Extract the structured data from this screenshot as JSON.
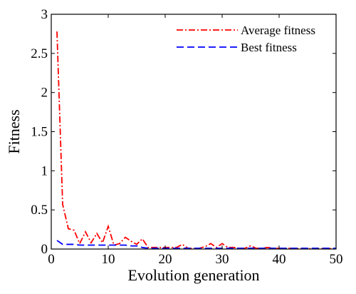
{
  "chart_data": {
    "type": "line",
    "xlabel": "Evolution generation",
    "ylabel": "Fitness",
    "xlim": [
      0,
      50
    ],
    "ylim": [
      0,
      3
    ],
    "xticks": [
      0,
      10,
      20,
      30,
      40,
      50
    ],
    "yticks": [
      0,
      0.5,
      1,
      1.5,
      2,
      2.5,
      3
    ],
    "ytick_labels": [
      "0",
      "0.5",
      "1",
      "1.5",
      "2",
      "2.5",
      "3"
    ],
    "grid": false,
    "legend_position": "top-right",
    "series": [
      {
        "name": "Average fitness",
        "color": "#ff0000",
        "style": "dash-dot",
        "x": [
          1,
          2,
          3,
          4,
          5,
          6,
          7,
          8,
          9,
          10,
          11,
          12,
          13,
          14,
          15,
          16,
          17,
          18,
          19,
          20,
          21,
          22,
          23,
          24,
          25,
          26,
          27,
          28,
          29,
          30,
          31,
          32,
          33,
          34,
          35,
          36,
          37,
          38,
          39,
          40,
          41,
          42,
          43,
          44,
          45,
          46,
          47,
          48,
          49,
          50
        ],
        "y": [
          2.78,
          0.57,
          0.26,
          0.24,
          0.07,
          0.22,
          0.08,
          0.2,
          0.08,
          0.29,
          0.05,
          0.07,
          0.15,
          0.1,
          0.06,
          0.13,
          0.02,
          0.02,
          0.02,
          0.02,
          0.02,
          0.02,
          0.06,
          0.01,
          0.01,
          0.01,
          0.03,
          0.07,
          0.02,
          0.07,
          0.02,
          0.02,
          0.01,
          0.01,
          0.04,
          0.01,
          0.01,
          0.02,
          0.01,
          0.01,
          0.01,
          0.01,
          0.005,
          0.005,
          0.005,
          0.005,
          0.005,
          0.005,
          0.005,
          0.005
        ]
      },
      {
        "name": "Best fitness",
        "color": "#0000ff",
        "style": "dashed",
        "x": [
          1,
          2,
          3,
          4,
          5,
          6,
          7,
          8,
          9,
          10,
          11,
          12,
          13,
          14,
          15,
          16,
          17,
          18,
          19,
          20,
          21,
          22,
          23,
          24,
          25,
          26,
          27,
          28,
          29,
          30,
          31,
          32,
          33,
          34,
          35,
          36,
          37,
          38,
          39,
          40,
          41,
          42,
          43,
          44,
          45,
          46,
          47,
          48,
          49,
          50
        ],
        "y": [
          0.11,
          0.06,
          0.06,
          0.06,
          0.05,
          0.05,
          0.05,
          0.05,
          0.05,
          0.05,
          0.05,
          0.05,
          0.05,
          0.04,
          0.04,
          0.02,
          0.01,
          0.01,
          0.01,
          0.01,
          0.01,
          0.01,
          0.01,
          0.01,
          0.01,
          0.01,
          0.01,
          0.01,
          0.01,
          0.01,
          0.01,
          0.01,
          0.01,
          0.01,
          0.01,
          0.01,
          0.01,
          0.01,
          0.01,
          0.01,
          0.01,
          0.01,
          0.01,
          0.01,
          0.01,
          0.01,
          0.01,
          0.01,
          0.01,
          0.01
        ]
      }
    ]
  }
}
